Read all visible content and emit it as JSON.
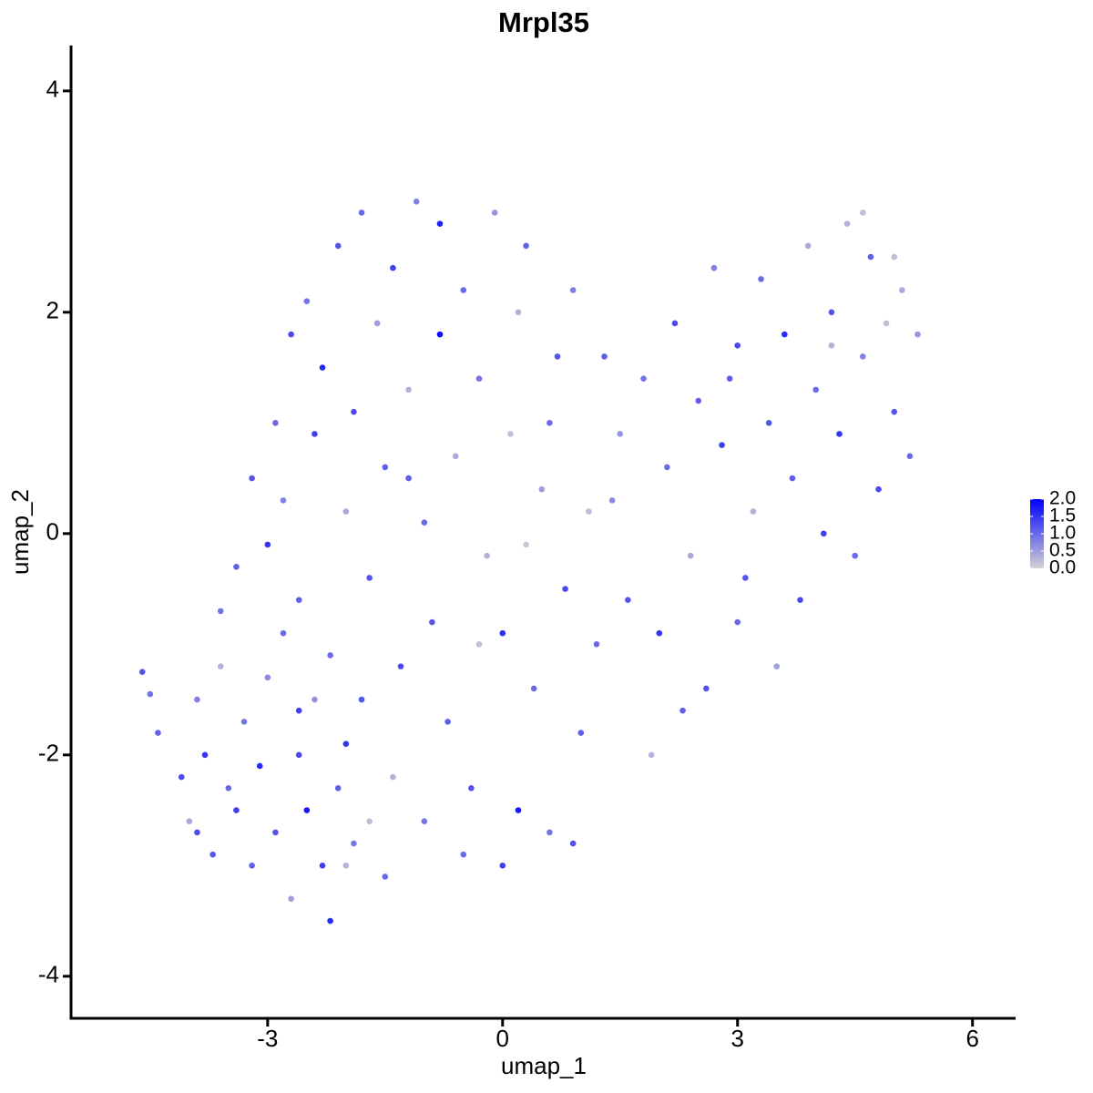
{
  "chart_data": {
    "type": "scatter",
    "title": "Mrpl35",
    "x_label": "umap_1",
    "y_label": "umap_2",
    "x": [
      -4.6,
      -4.5,
      -4.4,
      -4.1,
      -4.0,
      -3.9,
      -3.8,
      -3.7,
      -3.6,
      -3.5,
      -3.4,
      -3.3,
      -3.2,
      -3.1,
      -3.0,
      -2.9,
      -2.8,
      -2.7,
      -2.6,
      -2.5,
      -2.4,
      -2.3,
      -2.2,
      -2.1,
      -2.0,
      -1.9,
      -1.8,
      -1.7,
      -1.5,
      -1.4,
      -3.4,
      -3.2,
      -3.0,
      -2.9,
      -2.8,
      -2.7,
      -2.6,
      -2.5,
      -2.4,
      -2.3,
      -2.2,
      -2.1,
      -2.0,
      -1.9,
      -1.8,
      -1.7,
      -1.6,
      -1.5,
      -1.4,
      -1.3,
      -1.2,
      -1.1,
      -1.0,
      -0.9,
      -0.8,
      -0.8,
      -0.7,
      -0.6,
      -0.5,
      -0.4,
      -0.3,
      -0.2,
      -0.1,
      0,
      0.1,
      0.2,
      0.3,
      0.4,
      0.5,
      0.6,
      0.7,
      0.8,
      0.9,
      1.0,
      1.1,
      -0.5,
      0,
      0.9,
      -1.0,
      -0.3,
      0.3,
      -1.2,
      -2.6,
      -3.6,
      -3.9,
      -2.0,
      0.6,
      0.2,
      1.3,
      1.5,
      1.6,
      1.8,
      2.0,
      2.1,
      2.2,
      2.4,
      2.5,
      2.6,
      2.7,
      2.8,
      3.0,
      3.0,
      3.2,
      3.3,
      3.4,
      3.5,
      3.6,
      3.7,
      3.8,
      3.9,
      4.0,
      4.1,
      4.2,
      4.3,
      4.4,
      4.5,
      4.6,
      4.7,
      4.8,
      4.9,
      5.0,
      5.1,
      5.2,
      5.3,
      2.3,
      1.9,
      1.2,
      3.1,
      1.4,
      2.9,
      4.6,
      5.0,
      4.2
    ],
    "y": [
      -1.25,
      -1.45,
      -1.8,
      -2.2,
      -2.6,
      -1.5,
      -2.0,
      -2.9,
      -1.2,
      -2.3,
      -2.5,
      -1.7,
      -3.0,
      -2.1,
      -1.3,
      -2.7,
      -0.9,
      -3.3,
      -2.0,
      -2.5,
      -1.5,
      -3.0,
      -3.5,
      -2.3,
      -1.9,
      -2.8,
      -1.5,
      -2.6,
      -3.1,
      -2.2,
      -0.3,
      0.5,
      -0.1,
      1.0,
      0.3,
      1.8,
      -0.6,
      2.1,
      0.9,
      1.5,
      -1.1,
      2.6,
      0.2,
      1.1,
      2.9,
      -0.4,
      1.9,
      0.6,
      2.4,
      -1.2,
      1.3,
      3.0,
      0.1,
      -0.8,
      2.8,
      1.8,
      -1.7,
      0.7,
      2.2,
      -2.3,
      1.4,
      -0.2,
      2.9,
      -0.9,
      0.9,
      -2.5,
      2.6,
      -1.4,
      0.4,
      -2.7,
      1.6,
      -0.5,
      2.2,
      -1.8,
      0.2,
      -2.9,
      -3.0,
      -2.8,
      -2.6,
      -1.0,
      -0.1,
      0.5,
      -1.6,
      -0.7,
      -2.7,
      -3.0,
      1.0,
      2.0,
      1.6,
      0.9,
      -0.6,
      1.4,
      -0.9,
      0.6,
      1.9,
      -0.2,
      1.2,
      -1.4,
      2.4,
      0.8,
      -0.8,
      1.7,
      0.2,
      2.3,
      1.0,
      -1.2,
      1.8,
      0.5,
      -0.6,
      2.6,
      1.3,
      0,
      2.0,
      0.9,
      2.8,
      -0.2,
      1.6,
      2.5,
      0.4,
      1.9,
      1.1,
      2.2,
      0.7,
      1.8,
      -1.6,
      -2.0,
      -1.0,
      -0.4,
      0.3,
      1.4,
      2.9,
      2.5,
      1.7
    ],
    "expression": [
      1.2,
      0.9,
      1.1,
      1.3,
      0.4,
      0.8,
      1.5,
      1.2,
      0.3,
      1.0,
      1.4,
      0.9,
      1.1,
      1.6,
      0.7,
      1.2,
      1.0,
      0.5,
      1.3,
      1.8,
      0.6,
      1.4,
      1.6,
      1.1,
      1.5,
      0.9,
      1.2,
      0.2,
      1.0,
      0.3,
      1.1,
      1.2,
      1.5,
      1.0,
      0.8,
      1.3,
      1.1,
      0.9,
      1.4,
      1.6,
      1.0,
      1.2,
      0.4,
      1.3,
      1.0,
      1.2,
      0.5,
      1.1,
      1.4,
      1.3,
      0.3,
      0.8,
      1.0,
      1.2,
      1.7,
      1.9,
      1.1,
      0.4,
      1.0,
      1.2,
      0.9,
      0.3,
      0.6,
      1.6,
      0.2,
      1.8,
      1.1,
      1.0,
      0.5,
      0.9,
      1.2,
      1.3,
      0.8,
      1.1,
      0.2,
      1.0,
      1.4,
      1.2,
      0.9,
      0.2,
      0.1,
      1.1,
      1.4,
      0.9,
      1.3,
      0.3,
      1.0,
      0.3,
      1.1,
      0.6,
      1.2,
      0.9,
      1.5,
      1.0,
      1.3,
      0.4,
      1.1,
      1.2,
      0.8,
      1.4,
      1.0,
      1.3,
      0.3,
      1.0,
      1.2,
      0.5,
      1.6,
      1.1,
      1.3,
      0.4,
      1.0,
      1.4,
      1.2,
      1.5,
      0.3,
      1.0,
      0.8,
      1.1,
      1.3,
      0.2,
      1.2,
      0.4,
      1.0,
      0.6,
      1.1,
      0.3,
      1.0,
      1.2,
      0.7,
      1.1,
      0.2,
      0.2,
      0.3
    ],
    "xlim": [
      -5.51,
      6.55
    ],
    "ylim": [
      -4.38,
      4.41
    ],
    "xticks": [
      -3,
      0,
      3,
      6
    ],
    "yticks": [
      -4,
      -2,
      0,
      2,
      4
    ],
    "color_scale": {
      "low": "#d3d3d3",
      "high": "#0000ff",
      "lim": [
        0,
        2
      ],
      "ticks": [
        {
          "value": 0,
          "label": "0.0"
        },
        {
          "value": 0.5,
          "label": "0.5"
        },
        {
          "value": 1,
          "label": "1.0"
        },
        {
          "value": 1.5,
          "label": "1.5"
        },
        {
          "value": 2,
          "label": "2.0"
        }
      ]
    }
  }
}
